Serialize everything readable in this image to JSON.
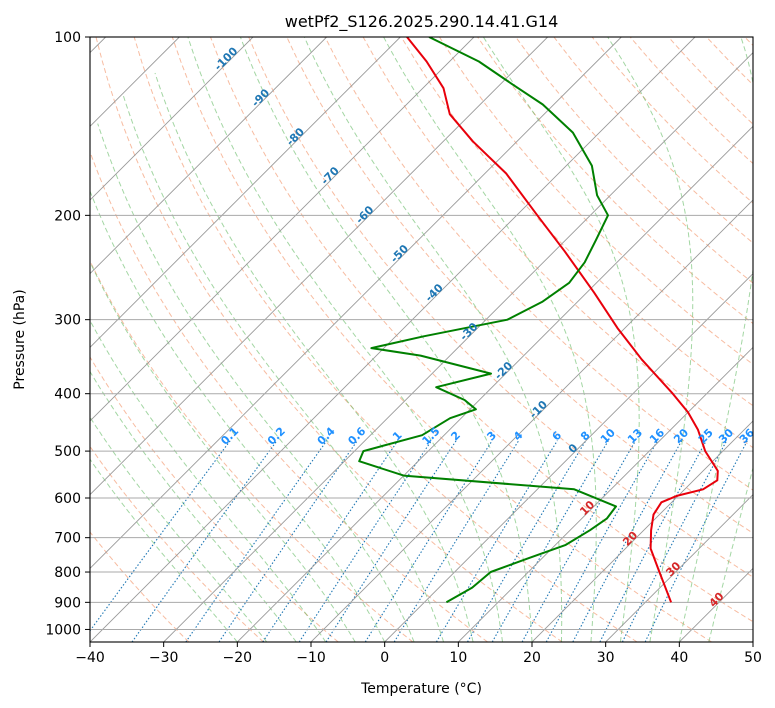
{
  "chart_data": {
    "type": "line",
    "title": "wetPf2_S126.2025.290.14.41.G14",
    "xlabel": "Temperature (°C)",
    "ylabel": "Pressure (hPa)",
    "xlim": [
      -40,
      50
    ],
    "ylim": [
      1050,
      100
    ],
    "yscale": "log",
    "skew_deg": 45,
    "xticks": [
      -40,
      -30,
      -20,
      -10,
      0,
      10,
      20,
      30,
      40,
      50
    ],
    "yticks": [
      100,
      200,
      300,
      400,
      500,
      600,
      700,
      800,
      900,
      1000
    ],
    "colors": {
      "temperature": "#e8000b",
      "dewpoint": "#008000",
      "dry_adiabat": "#f4a582",
      "moist_adiabat": "#66bb66",
      "mixing_ratio": "#1f77b4",
      "isotherm": "#999999",
      "isobar": "#aaaaaa",
      "dry_label": "#d62728",
      "mix_label": "#1e90ff"
    },
    "series": [
      {
        "name": "Temperature",
        "points": [
          [
            33.5,
            900
          ],
          [
            27.8,
            800
          ],
          [
            23.4,
            730
          ],
          [
            21.0,
            680
          ],
          [
            19.2,
            640
          ],
          [
            18.6,
            610
          ],
          [
            19.8,
            595
          ],
          [
            22.5,
            580
          ],
          [
            23.2,
            560
          ],
          [
            22.0,
            540
          ],
          [
            17.6,
            500
          ],
          [
            13.7,
            460
          ],
          [
            10.0,
            430
          ],
          [
            5.4,
            400
          ],
          [
            -3.5,
            350
          ],
          [
            -11.0,
            310
          ],
          [
            -19.0,
            270
          ],
          [
            -28.6,
            230
          ],
          [
            -37.2,
            200
          ],
          [
            -47.1,
            170
          ],
          [
            -56.0,
            150
          ],
          [
            -62.8,
            135
          ],
          [
            -67.2,
            122
          ],
          [
            -73.1,
            110
          ],
          [
            -79.1,
            100
          ]
        ]
      },
      {
        "name": "Dewpoint",
        "points": [
          [
            3.0,
            900
          ],
          [
            4.5,
            850
          ],
          [
            4.9,
            800
          ],
          [
            8.0,
            760
          ],
          [
            11.4,
            720
          ],
          [
            12.7,
            680
          ],
          [
            13.4,
            650
          ],
          [
            13.0,
            620
          ],
          [
            5.0,
            580
          ],
          [
            -20.0,
            550
          ],
          [
            -28.0,
            520
          ],
          [
            -28.8,
            500
          ],
          [
            -23.0,
            470
          ],
          [
            -21.5,
            440
          ],
          [
            -19.2,
            425
          ],
          [
            -22.0,
            410
          ],
          [
            -27.6,
            390
          ],
          [
            -22.0,
            370
          ],
          [
            -34.0,
            345
          ],
          [
            -41.7,
            335
          ],
          [
            -36.2,
            320
          ],
          [
            -27.1,
            300
          ],
          [
            -24.8,
            280
          ],
          [
            -23.7,
            260
          ],
          [
            -24.4,
            240
          ],
          [
            -25.9,
            220
          ],
          [
            -27.6,
            200
          ],
          [
            -31.8,
            185
          ],
          [
            -36.5,
            165
          ],
          [
            -43.6,
            145
          ],
          [
            -51.5,
            130
          ],
          [
            -58.5,
            120
          ],
          [
            -66.0,
            110
          ],
          [
            -76.1,
            100
          ]
        ]
      }
    ],
    "dry_adiabat_labels": [
      "10",
      "20",
      "30",
      "40"
    ],
    "dry_adiabat_label_values": [
      10,
      20,
      30,
      40
    ],
    "moist_adiabat_labels": [
      "-100",
      "-90",
      "-80",
      "-70",
      "-60",
      "-50",
      "-40",
      "-30",
      "-20",
      "-10",
      "0"
    ],
    "moist_adiabat_label_values": [
      -100,
      -90,
      -80,
      -70,
      -60,
      -50,
      -40,
      -30,
      -20,
      -10,
      0
    ],
    "mixing_ratio_labels": [
      "0.1",
      "0.2",
      "0.4",
      "0.6",
      "1",
      "1.5",
      "2",
      "3",
      "4",
      "6",
      "8",
      "10",
      "13",
      "16",
      "20",
      "25",
      "30",
      "36"
    ],
    "mixing_ratio_values": [
      0.1,
      0.2,
      0.4,
      0.6,
      1,
      1.5,
      2,
      3,
      4,
      6,
      8,
      10,
      13,
      16,
      20,
      25,
      30,
      36
    ]
  }
}
